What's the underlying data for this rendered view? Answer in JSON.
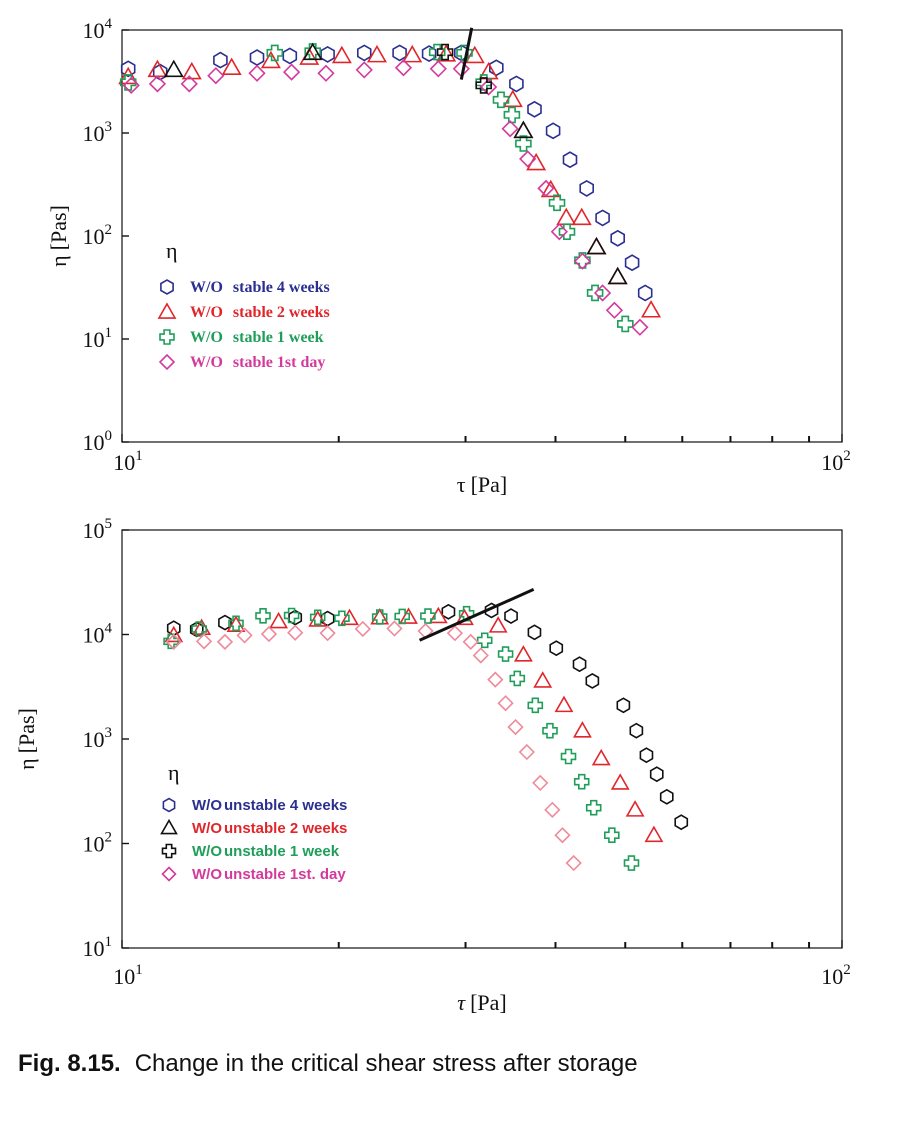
{
  "caption": {
    "number": "Fig. 8.15.",
    "text": "Change in the critical shear stress after storage"
  },
  "colors": {
    "blue": "#2b2f8f",
    "red": "#e0262b",
    "black": "#111111",
    "green": "#1f9e5a",
    "magenta": "#d43a9c",
    "pink": "#ef8a9a"
  },
  "chart_data": [
    {
      "type": "scatter",
      "scale": "log-log",
      "xlabel_sym": "τ",
      "xlabel_unit": "[Pa]",
      "ylabel_sym": "η",
      "ylabel_unit": "[Pas]",
      "xlim": [
        10,
        100
      ],
      "ylim": [
        1,
        10000
      ],
      "x_ticks": [
        {
          "value": 10,
          "base": "10",
          "exp": "1"
        },
        {
          "value": 100,
          "base": "10",
          "exp": "2"
        }
      ],
      "y_ticks": [
        {
          "value": 1,
          "base": "10",
          "exp": "0"
        },
        {
          "value": 10,
          "base": "10",
          "exp": "1"
        },
        {
          "value": 100,
          "base": "10",
          "exp": "2"
        },
        {
          "value": 1000,
          "base": "10",
          "exp": "3"
        },
        {
          "value": 10000,
          "base": "10",
          "exp": "4"
        }
      ],
      "legend_title": "η",
      "legend_position": "lower-left",
      "critical_line": {
        "x": [
          30.6,
          29.6
        ],
        "y": [
          10500,
          3300
        ]
      },
      "series": [
        {
          "name": "4 weeks",
          "label_prefix": "W/O",
          "label_main": "stable  4  weeks",
          "marker": "hexagon",
          "color": "#2b2f8f",
          "points": [
            [
              10.2,
              4200
            ],
            [
              11.3,
              3900
            ],
            [
              13.7,
              5100
            ],
            [
              15.4,
              5400
            ],
            [
              17.1,
              5600
            ],
            [
              19.3,
              5800
            ],
            [
              21.7,
              6000
            ],
            [
              24.3,
              6000
            ],
            [
              26.7,
              5900
            ],
            [
              29.6,
              6000
            ],
            [
              33.1,
              4300
            ],
            [
              35.3,
              3000
            ],
            [
              37.4,
              1700
            ],
            [
              39.7,
              1050
            ],
            [
              41.9,
              550
            ],
            [
              44.2,
              290
            ],
            [
              46.5,
              150
            ],
            [
              48.8,
              95
            ],
            [
              51.1,
              55
            ],
            [
              53.3,
              28
            ]
          ]
        },
        {
          "name": "2 weeks",
          "label_prefix": "W/O",
          "label_main": "stable  2  weeks",
          "marker": "triangle",
          "color": "#e0262b",
          "points": [
            [
              10.2,
              3500
            ],
            [
              11.2,
              4100
            ],
            [
              12.5,
              3900
            ],
            [
              14.2,
              4300
            ],
            [
              16.1,
              5000
            ],
            [
              18.2,
              5400
            ],
            [
              20.2,
              5600
            ],
            [
              22.6,
              5700
            ],
            [
              25.3,
              5700
            ],
            [
              28.2,
              5800
            ],
            [
              30.9,
              5600
            ],
            [
              32.3,
              3900
            ],
            [
              34.9,
              2100
            ],
            [
              36.1,
              1050
            ],
            [
              37.6,
              510
            ],
            [
              39.4,
              280
            ],
            [
              41.4,
              150
            ],
            [
              43.5,
              150
            ],
            [
              45.6,
              78
            ],
            [
              48.8,
              40
            ],
            [
              54.3,
              19
            ]
          ]
        },
        {
          "name": "1 week",
          "label_prefix": "W/O",
          "label_main": "stable  1  week",
          "marker": "cross",
          "color": "#1f9e5a",
          "points": [
            [
              10.2,
              3100
            ],
            [
              16.3,
              6000
            ],
            [
              18.4,
              6200
            ],
            [
              27.4,
              6100
            ],
            [
              29.9,
              6000
            ],
            [
              31.8,
              3100
            ],
            [
              33.6,
              2100
            ],
            [
              34.8,
              1500
            ],
            [
              36.1,
              790
            ],
            [
              40.2,
              210
            ],
            [
              41.5,
              110
            ],
            [
              43.6,
              58
            ],
            [
              45.4,
              28
            ],
            [
              50.0,
              14
            ]
          ]
        },
        {
          "name": "1st day",
          "label_prefix": "W/O",
          "label_main": "stable  1st  day",
          "marker": "diamond",
          "color": "#d43a9c",
          "points": [
            [
              10.3,
              2900
            ],
            [
              11.2,
              3000
            ],
            [
              12.4,
              3000
            ],
            [
              13.5,
              3600
            ],
            [
              15.4,
              3800
            ],
            [
              17.2,
              3900
            ],
            [
              19.2,
              3800
            ],
            [
              21.7,
              4100
            ],
            [
              24.6,
              4300
            ],
            [
              27.5,
              4200
            ],
            [
              29.6,
              4200
            ],
            [
              32.3,
              2800
            ],
            [
              34.6,
              1100
            ],
            [
              36.6,
              560
            ],
            [
              38.8,
              290
            ],
            [
              40.5,
              110
            ],
            [
              43.6,
              57
            ],
            [
              46.5,
              28
            ],
            [
              48.3,
              19
            ],
            [
              52.4,
              13
            ]
          ]
        },
        {
          "name": "1 week overlay",
          "marker": "cross",
          "color": "#111111",
          "points": [
            [
              28.1,
              6100
            ],
            [
              31.8,
              2900
            ]
          ]
        },
        {
          "name": "2 weeks overlay",
          "marker": "triangle",
          "color": "#111111",
          "points": [
            [
              18.4,
              6000
            ],
            [
              11.8,
              4100
            ],
            [
              36.1,
              1050
            ],
            [
              45.6,
              78
            ],
            [
              48.8,
              40
            ]
          ]
        }
      ]
    },
    {
      "type": "scatter",
      "scale": "log-log",
      "xlabel_sym": "τ",
      "xlabel_unit": "[Pa]",
      "ylabel_sym": "η",
      "ylabel_unit": "[Pas]",
      "xlim": [
        10,
        100
      ],
      "ylim": [
        10,
        100000
      ],
      "x_ticks": [
        {
          "value": 10,
          "base": "10",
          "exp": "1"
        },
        {
          "value": 100,
          "base": "10",
          "exp": "2"
        }
      ],
      "y_ticks": [
        {
          "value": 10,
          "base": "10",
          "exp": "1"
        },
        {
          "value": 100,
          "base": "10",
          "exp": "2"
        },
        {
          "value": 1000,
          "base": "10",
          "exp": "3"
        },
        {
          "value": 10000,
          "base": "10",
          "exp": "4"
        },
        {
          "value": 100000,
          "base": "10",
          "exp": "5"
        }
      ],
      "legend_title": "η",
      "legend_position": "lower-left",
      "critical_line": {
        "x": [
          25.9,
          37.3
        ],
        "y": [
          8800,
          27000
        ]
      },
      "series": [
        {
          "name": "4 weeks",
          "label_prefix": "W/O",
          "label_main": "unstable 4 weeks",
          "marker": "hexagon",
          "color": "#111111",
          "points": [
            [
              11.8,
              11500
            ],
            [
              12.7,
              11200
            ],
            [
              13.9,
              13000
            ],
            [
              17.4,
              14500
            ],
            [
              19.3,
              14200
            ],
            [
              28.4,
              16500
            ],
            [
              32.6,
              17000
            ],
            [
              34.7,
              15000
            ],
            [
              37.4,
              10500
            ],
            [
              40.1,
              7400
            ],
            [
              43.2,
              5200
            ],
            [
              45.0,
              3600
            ],
            [
              49.7,
              2100
            ],
            [
              51.8,
              1200
            ],
            [
              53.5,
              700
            ],
            [
              55.3,
              460
            ],
            [
              57.1,
              280
            ],
            [
              59.8,
              160
            ]
          ]
        },
        {
          "name": "2 weeks",
          "label_prefix": "W/O",
          "label_main": "unstable 2 weeks",
          "marker": "triangle",
          "color": "#e0262b",
          "points": [
            [
              11.8,
              9800
            ],
            [
              12.9,
              11500
            ],
            [
              14.4,
              12300
            ],
            [
              16.5,
              13300
            ],
            [
              18.7,
              13800
            ],
            [
              20.7,
              14300
            ],
            [
              22.8,
              14500
            ],
            [
              25.0,
              14700
            ],
            [
              27.5,
              14900
            ],
            [
              29.9,
              14300
            ],
            [
              33.3,
              12100
            ],
            [
              36.1,
              6400
            ],
            [
              38.4,
              3600
            ],
            [
              41.1,
              2100
            ],
            [
              43.6,
              1200
            ],
            [
              46.3,
              650
            ],
            [
              49.2,
              380
            ],
            [
              51.6,
              210
            ],
            [
              54.8,
              120
            ]
          ]
        },
        {
          "name": "1 week",
          "label_prefix": "W/O",
          "label_main": "unstable 1 week",
          "marker": "cross",
          "color": "#1f9e5a",
          "points": [
            [
              11.7,
              8600
            ],
            [
              12.8,
              11300
            ],
            [
              14.4,
              12800
            ],
            [
              15.7,
              15100
            ],
            [
              17.2,
              15200
            ],
            [
              18.7,
              14600
            ],
            [
              20.2,
              14300
            ],
            [
              22.8,
              14700
            ],
            [
              24.5,
              14900
            ],
            [
              26.6,
              15000
            ],
            [
              30.1,
              15800
            ],
            [
              31.9,
              8800
            ],
            [
              34.1,
              6500
            ],
            [
              35.4,
              3800
            ],
            [
              37.5,
              2100
            ],
            [
              39.3,
              1200
            ],
            [
              41.7,
              680
            ],
            [
              43.5,
              390
            ],
            [
              45.2,
              220
            ],
            [
              47.9,
              120
            ],
            [
              51.0,
              65
            ]
          ]
        },
        {
          "name": "1st day",
          "label_prefix": "W/O",
          "label_main": "unstable 1st. day",
          "marker": "diamond",
          "color": "#ef8a9a",
          "points": [
            [
              11.8,
              8500
            ],
            [
              13.0,
              8600
            ],
            [
              13.9,
              8500
            ],
            [
              14.8,
              9800
            ],
            [
              16.0,
              10100
            ],
            [
              17.4,
              10400
            ],
            [
              19.3,
              10300
            ],
            [
              21.6,
              11300
            ],
            [
              23.9,
              11400
            ],
            [
              26.4,
              10800
            ],
            [
              29.0,
              10300
            ],
            [
              30.5,
              8500
            ],
            [
              31.5,
              6300
            ],
            [
              33.0,
              3700
            ],
            [
              34.1,
              2200
            ],
            [
              35.2,
              1300
            ],
            [
              36.5,
              750
            ],
            [
              38.1,
              380
            ],
            [
              39.6,
              210
            ],
            [
              40.9,
              120
            ],
            [
              42.4,
              65
            ]
          ]
        }
      ],
      "legend_entries": [
        {
          "label_prefix": "W/O",
          "label_main": "unstable 4 weeks",
          "marker": "hexagon",
          "icon_color": "#2b2f8f",
          "text_color": "#2b2f8f",
          "prefix_color": "#2b2f8f"
        },
        {
          "label_prefix": "W/O",
          "label_main": "unstable 2 weeks",
          "marker": "triangle",
          "icon_color": "#111111",
          "text_color": "#e0262b",
          "prefix_color": "#e0262b"
        },
        {
          "label_prefix": "W/O",
          "label_main": "unstable 1 week",
          "marker": "cross",
          "icon_color": "#111111",
          "text_color": "#1f9e5a",
          "prefix_color": "#1f9e5a"
        },
        {
          "label_prefix": "W/O",
          "label_main": "unstable 1st. day",
          "marker": "diamond",
          "icon_color": "#d43a9c",
          "text_color": "#d43a9c",
          "prefix_color": "#d43a9c"
        }
      ]
    }
  ]
}
